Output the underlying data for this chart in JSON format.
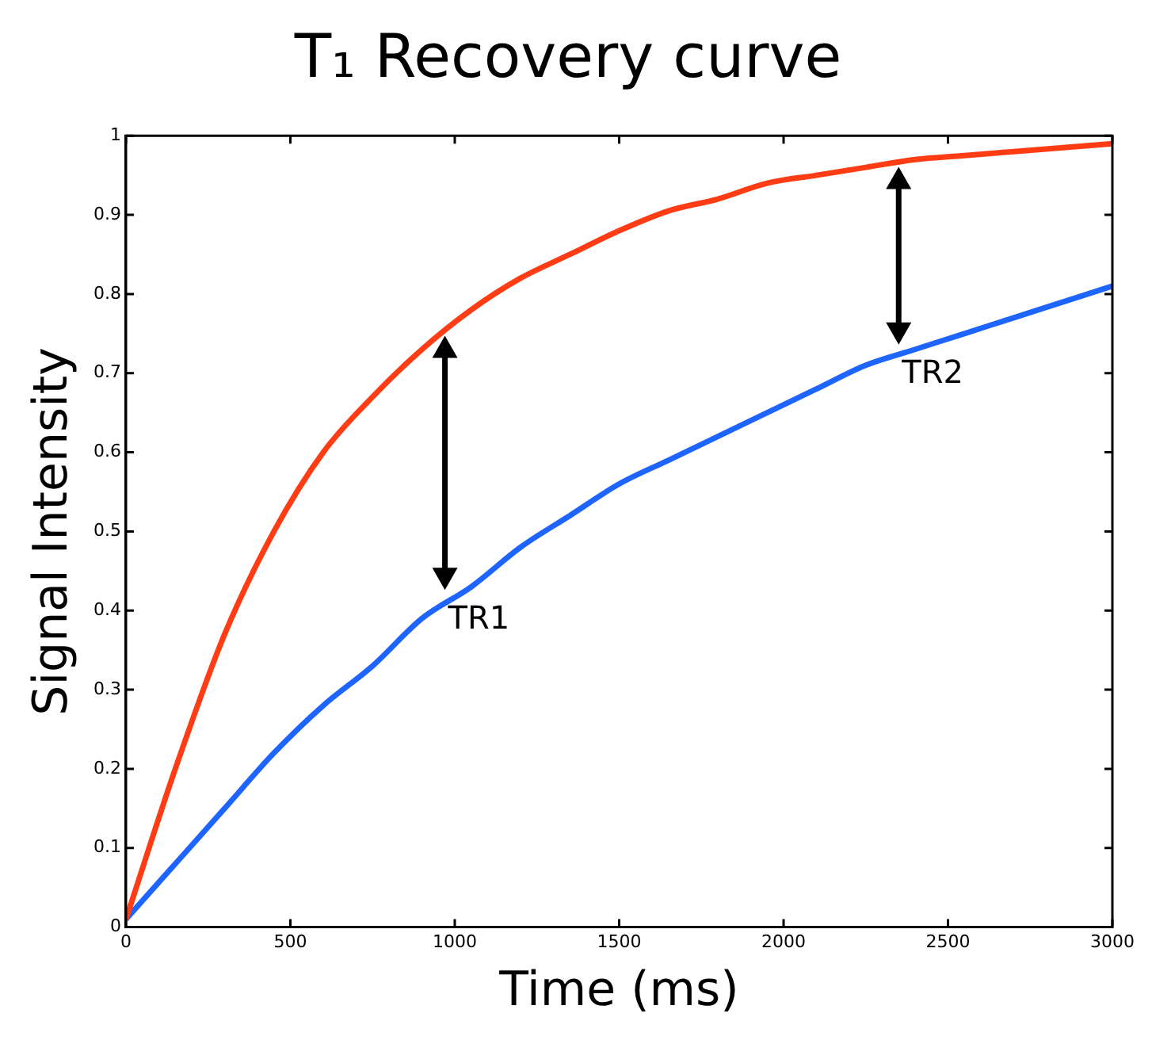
{
  "chart_data": {
    "type": "line",
    "title": "T₁ Recovery curve",
    "xlabel": "Time (ms)",
    "ylabel": "Signal Intensity",
    "x": [
      0,
      150,
      300,
      450,
      600,
      750,
      900,
      1050,
      1200,
      1350,
      1500,
      1650,
      1800,
      1950,
      2100,
      2250,
      2400,
      2550,
      2700,
      2850,
      3000
    ],
    "series": [
      {
        "color": "#ff3c14",
        "values": [
          0.01,
          0.2,
          0.37,
          0.5,
          0.6,
          0.67,
          0.73,
          0.78,
          0.82,
          0.85,
          0.88,
          0.905,
          0.92,
          0.94,
          0.95,
          0.96,
          0.97,
          0.975,
          0.98,
          0.985,
          0.99
        ]
      },
      {
        "color": "#1e64ff",
        "values": [
          0.01,
          0.08,
          0.15,
          0.22,
          0.28,
          0.33,
          0.39,
          0.43,
          0.48,
          0.52,
          0.56,
          0.59,
          0.62,
          0.65,
          0.68,
          0.71,
          0.73,
          0.75,
          0.77,
          0.79,
          0.81
        ]
      }
    ],
    "annotations": [
      {
        "text": "TR1",
        "x": 970,
        "y": 0.42
      },
      {
        "text": "TR2",
        "x": 2350,
        "y": 0.73
      }
    ],
    "xlim": [
      0,
      3000
    ],
    "xticks": [
      0,
      500,
      1000,
      1500,
      2000,
      2500,
      3000
    ],
    "ylim": [
      0,
      1
    ],
    "yticks": [
      0,
      0.1,
      0.2,
      0.3,
      0.4,
      0.5,
      0.6,
      0.7,
      0.8,
      0.9,
      1
    ],
    "grid": false,
    "legend": false,
    "marker": "none",
    "line_style": "solid"
  }
}
